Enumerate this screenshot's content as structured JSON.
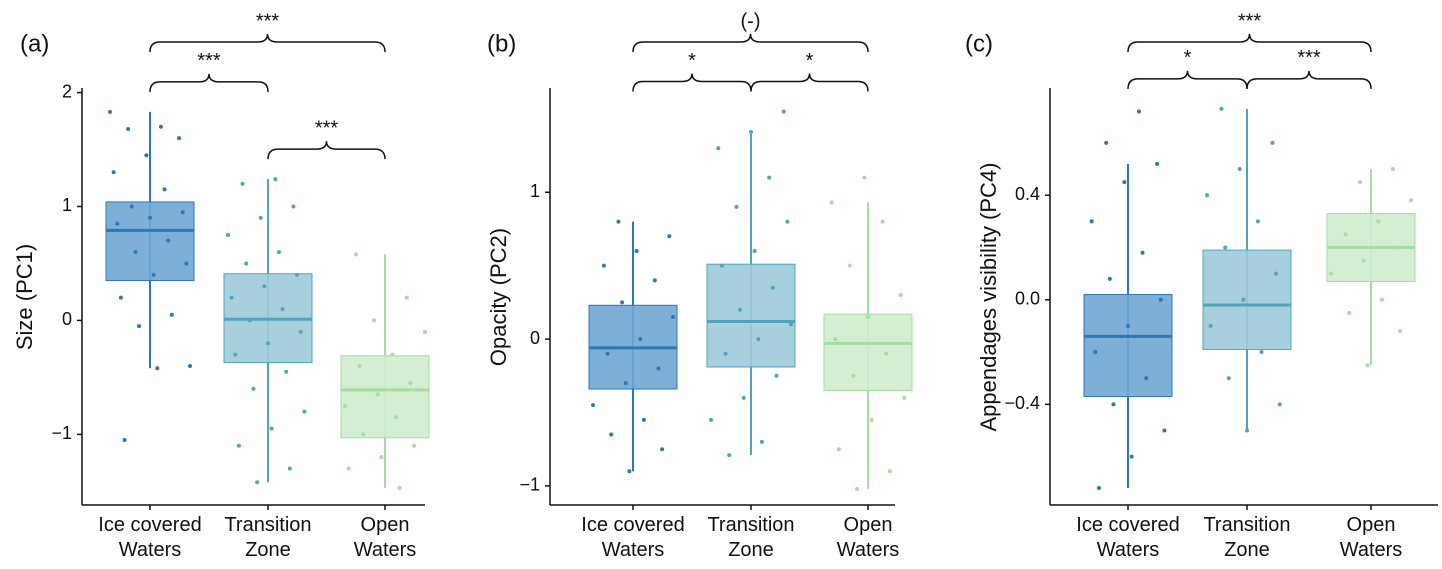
{
  "chart_data": [
    {
      "type": "box",
      "panel_label": "(a)",
      "ylabel": "Size (PC1)",
      "categories": [
        "Ice covered Waters",
        "Transition Zone",
        "Open Waters"
      ],
      "ylim": [
        -1.62,
        2.04
      ],
      "yticks": [
        {
          "value": -1,
          "label": "−1"
        },
        0,
        1,
        2
      ],
      "boxes": [
        {
          "color": "#6fa6d3",
          "line_color": "#2c77b6",
          "min": -0.42,
          "q1": 0.35,
          "median": 0.79,
          "q3": 1.04,
          "max": 1.83,
          "points": [
            1.83,
            1.7,
            1.68,
            1.6,
            1.45,
            1.3,
            1.15,
            1.0,
            0.95,
            0.9,
            0.85,
            0.7,
            0.6,
            0.5,
            0.4,
            0.2,
            0.05,
            -0.05,
            -0.4,
            -0.42,
            -1.05
          ]
        },
        {
          "color": "#9ecbd8",
          "line_color": "#4fa3bd",
          "min": -1.42,
          "q1": -0.37,
          "median": 0.01,
          "q3": 0.41,
          "max": 1.24,
          "points": [
            1.24,
            1.2,
            1.0,
            0.9,
            0.75,
            0.6,
            0.5,
            0.4,
            0.3,
            0.2,
            0.1,
            0.0,
            -0.1,
            -0.2,
            -0.3,
            -0.45,
            -0.6,
            -0.8,
            -0.95,
            -1.1,
            -1.3,
            -1.42
          ]
        },
        {
          "color": "#cfeccc",
          "line_color": "#a6dca2",
          "min": -1.47,
          "q1": -1.03,
          "median": -0.61,
          "q3": -0.31,
          "max": 0.58,
          "points": [
            0.58,
            0.2,
            0.0,
            -0.1,
            -0.3,
            -0.4,
            -0.55,
            -0.65,
            -0.75,
            -0.85,
            -1.0,
            -1.1,
            -1.2,
            -1.3,
            -1.47
          ]
        }
      ],
      "brackets": [
        {
          "pair": [
            0,
            2
          ],
          "label": "***"
        },
        {
          "pair": [
            0,
            1
          ],
          "label": "***"
        },
        {
          "pair": [
            1,
            2
          ],
          "label": "***"
        }
      ]
    },
    {
      "type": "box",
      "panel_label": "(b)",
      "ylabel": "Opacity (PC2)",
      "categories": [
        "Ice covered Waters",
        "Transition Zone",
        "Open Waters"
      ],
      "ylim": [
        -1.13,
        1.71
      ],
      "yticks": [
        {
          "value": -1,
          "label": "−1"
        },
        0,
        1
      ],
      "boxes": [
        {
          "color": "#6fa6d3",
          "line_color": "#2c77b6",
          "min": -0.9,
          "q1": -0.34,
          "median": -0.06,
          "q3": 0.23,
          "max": 0.8,
          "points": [
            0.8,
            0.7,
            0.6,
            0.5,
            0.4,
            0.25,
            0.15,
            0.0,
            -0.1,
            -0.2,
            -0.3,
            -0.45,
            -0.55,
            -0.65,
            -0.75,
            -0.9
          ]
        },
        {
          "color": "#9ecbd8",
          "line_color": "#4fa3bd",
          "min": -0.79,
          "q1": -0.19,
          "median": 0.12,
          "q3": 0.51,
          "max": 1.41,
          "points": [
            1.55,
            1.41,
            1.3,
            1.1,
            0.9,
            0.8,
            0.6,
            0.5,
            0.35,
            0.2,
            0.1,
            0.0,
            -0.1,
            -0.25,
            -0.4,
            -0.55,
            -0.7,
            -0.79
          ]
        },
        {
          "color": "#cfeccc",
          "line_color": "#a6dca2",
          "min": -1.02,
          "q1": -0.35,
          "median": -0.03,
          "q3": 0.17,
          "max": 0.93,
          "points": [
            1.1,
            0.93,
            0.8,
            0.5,
            0.3,
            0.15,
            0.0,
            -0.1,
            -0.25,
            -0.4,
            -0.55,
            -0.75,
            -0.9,
            -1.02
          ]
        }
      ],
      "brackets": [
        {
          "pair": [
            0,
            2
          ],
          "label": "(-)"
        },
        {
          "pair": [
            0,
            1
          ],
          "label": "*"
        },
        {
          "pair": [
            1,
            2
          ],
          "label": "*"
        }
      ]
    },
    {
      "type": "box",
      "panel_label": "(c)",
      "ylabel": "Appendages visibility (PC4)",
      "categories": [
        "Ice covered Waters",
        "Transition Zone",
        "Open Waters"
      ],
      "ylim": [
        -0.785,
        0.81
      ],
      "yticks": [
        {
          "value": -0.4,
          "label": "−0.4"
        },
        {
          "value": 0,
          "label": "0.0"
        },
        0.4
      ],
      "boxes": [
        {
          "color": "#6fa6d3",
          "line_color": "#2c77b6",
          "min": -0.72,
          "q1": -0.37,
          "median": -0.14,
          "q3": 0.02,
          "max": 0.52,
          "points": [
            0.72,
            0.6,
            0.52,
            0.45,
            0.3,
            0.18,
            0.08,
            0.0,
            -0.1,
            -0.2,
            -0.3,
            -0.4,
            -0.5,
            -0.6,
            -0.72
          ]
        },
        {
          "color": "#9ecbd8",
          "line_color": "#4fa3bd",
          "min": -0.5,
          "q1": -0.19,
          "median": -0.02,
          "q3": 0.19,
          "max": 0.73,
          "points": [
            0.73,
            0.6,
            0.5,
            0.4,
            0.3,
            0.2,
            0.1,
            0.0,
            -0.1,
            -0.2,
            -0.3,
            -0.4,
            -0.5
          ]
        },
        {
          "color": "#cfeccc",
          "line_color": "#a6dca2",
          "min": -0.25,
          "q1": 0.07,
          "median": 0.2,
          "q3": 0.33,
          "max": 0.5,
          "points": [
            0.5,
            0.45,
            0.38,
            0.3,
            0.25,
            0.2,
            0.15,
            0.1,
            0.0,
            -0.05,
            -0.12,
            -0.25
          ]
        }
      ],
      "brackets": [
        {
          "pair": [
            0,
            2
          ],
          "label": "***"
        },
        {
          "pair": [
            0,
            1
          ],
          "label": "*"
        },
        {
          "pair": [
            1,
            2
          ],
          "label": "***"
        }
      ]
    }
  ]
}
